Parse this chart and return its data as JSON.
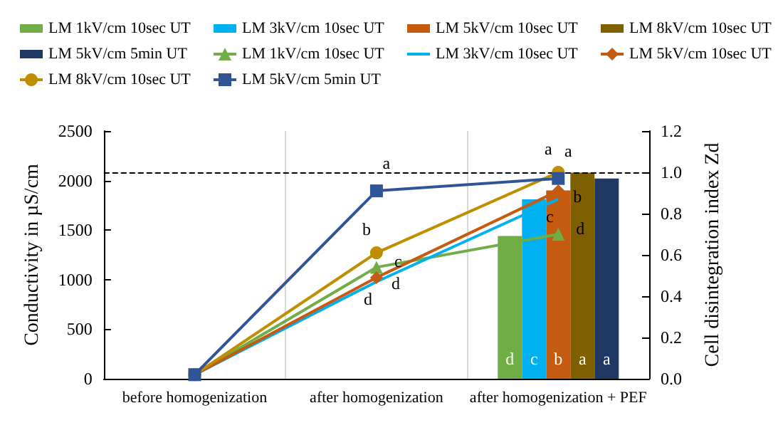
{
  "chart_data": {
    "type": "bar",
    "categories": [
      "before homogenization",
      "after homogenization",
      "after homogenization + PEF"
    ],
    "ylabel": "Conductivity in µS/cm",
    "y2label": "Cell disintegration index Zd",
    "ylim": [
      0,
      2500
    ],
    "yticks": [
      0,
      500,
      1000,
      1500,
      2000,
      2500
    ],
    "y2lim": [
      0,
      1.2
    ],
    "y2ticks": [
      {
        "value": 0,
        "label": "0.0"
      },
      {
        "value": 0.2,
        "label": "0.2"
      },
      {
        "value": 0.4,
        "label": "0.4"
      },
      {
        "value": 0.6,
        "label": "0.6"
      },
      {
        "value": 0.8,
        "label": "0.8"
      },
      {
        "value": 1,
        "label": "1.0"
      },
      {
        "value": 1.2,
        "label": "1.2"
      }
    ],
    "grid": "x",
    "legend": "top",
    "ref_lines": [
      {
        "axis": "y2",
        "value": 1,
        "line_style": "dashed",
        "color": "#000000"
      }
    ],
    "series": [
      {
        "name": "LM 1kV/cm 10sec UT",
        "color": "#70ad47",
        "values": [
          null,
          null,
          1440
        ],
        "value_labels": [
          null,
          null,
          "d"
        ]
      },
      {
        "name": "LM 3kV/cm 10sec UT",
        "color": "#00b0f0",
        "values": [
          null,
          null,
          1810
        ],
        "value_labels": [
          null,
          null,
          "c"
        ]
      },
      {
        "name": "LM 5kV/cm 10sec UT",
        "color": "#c55a11",
        "values": [
          null,
          null,
          1900
        ],
        "value_labels": [
          null,
          null,
          "b"
        ]
      },
      {
        "name": "LM 8kV/cm 10sec UT",
        "color": "#7f6000",
        "values": [
          null,
          null,
          2080
        ],
        "value_labels": [
          null,
          null,
          "a"
        ]
      },
      {
        "name": "LM 5kV/cm 5min UT",
        "color": "#203864",
        "values": [
          null,
          null,
          2020
        ],
        "value_labels": [
          null,
          null,
          "a"
        ]
      },
      {
        "name": "LM 1kV/cm 10sec UT",
        "type": "line",
        "axis": "y2",
        "marker": "triangle",
        "color": "#70ad47",
        "values": [
          0.02,
          0.54,
          0.7
        ],
        "value_labels": [
          null,
          "c",
          "d"
        ]
      },
      {
        "name": "LM 3kV/cm 10sec UT",
        "type": "line",
        "axis": "y2",
        "marker": "none",
        "color": "#00b0f0",
        "values": [
          0.02,
          0.47,
          0.87
        ],
        "value_labels": [
          null,
          "d",
          "c"
        ]
      },
      {
        "name": "LM 5kV/cm 10sec UT",
        "type": "line",
        "axis": "y2",
        "marker": "diamond",
        "color": "#c55a11",
        "values": [
          0.02,
          0.49,
          0.91
        ],
        "value_labels": [
          null,
          "d",
          "b"
        ]
      },
      {
        "name": "LM 8kV/cm 10sec UT",
        "type": "line",
        "axis": "y2",
        "marker": "circle",
        "color": "#bf8f00",
        "values": [
          0.02,
          0.61,
          1.0
        ],
        "value_labels": [
          null,
          "b",
          "a"
        ]
      },
      {
        "name": "LM 5kV/cm 5min UT",
        "type": "line",
        "axis": "y2",
        "marker": "square",
        "color": "#2f5597",
        "values": [
          0.02,
          0.91,
          0.97
        ],
        "value_labels": [
          null,
          "a",
          "a"
        ]
      }
    ]
  }
}
